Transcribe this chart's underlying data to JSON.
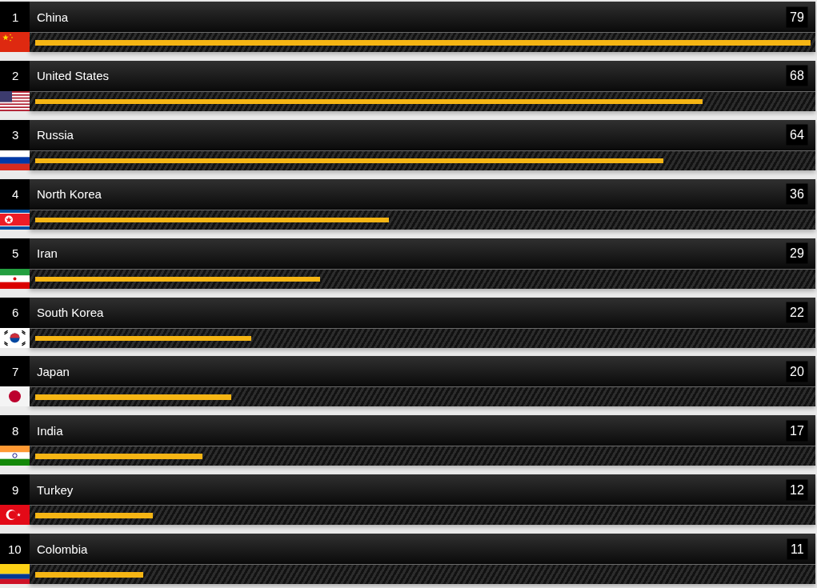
{
  "chart_data": {
    "type": "bar",
    "orientation": "horizontal",
    "categories": [
      "China",
      "United States",
      "Russia",
      "North Korea",
      "Iran",
      "South Korea",
      "Japan",
      "India",
      "Turkey",
      "Colombia"
    ],
    "values": [
      79,
      68,
      64,
      36,
      29,
      22,
      20,
      17,
      12,
      11
    ],
    "color": "#f5b514",
    "data_labels": true,
    "tick_labels": "y",
    "annotations": [
      "1",
      "2",
      "3",
      "4",
      "5",
      "6",
      "7",
      "8",
      "9",
      "10"
    ]
  }
}
